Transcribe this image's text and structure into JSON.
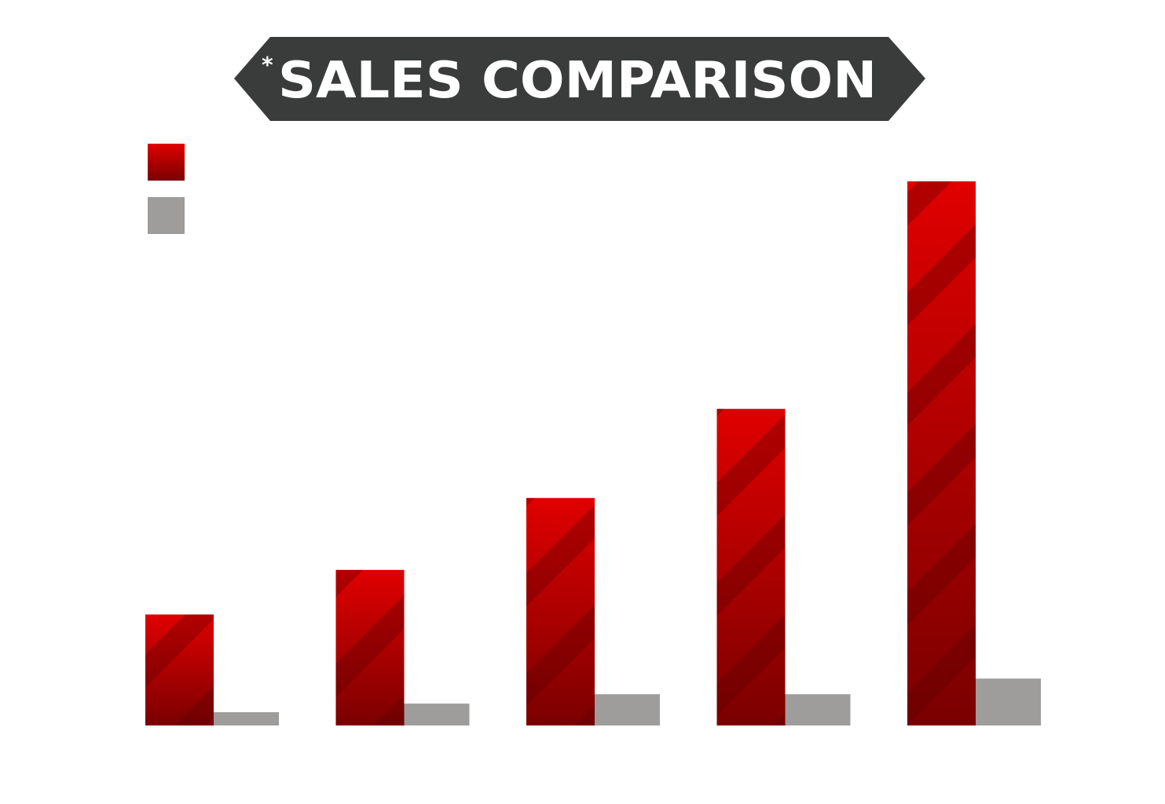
{
  "chart_data": {
    "type": "bar",
    "title_prefix": "*",
    "title": "SALES COMPARISON",
    "categories": [
      "",
      "",
      "",
      "",
      ""
    ],
    "series": [
      {
        "values": [
          142,
          199,
          291,
          405,
          696
        ]
      },
      {
        "values": [
          17,
          28,
          40,
          40,
          60
        ]
      }
    ],
    "ylim": [
      0,
      700
    ],
    "grid": false,
    "legend_placement": "top-left",
    "colors": {
      "series_1_top": "#e00000",
      "series_1_bottom": "#7a0000",
      "series_1_stripe": "#5a0000",
      "series_2": "#9e9d9c",
      "title_banner": "#3a3b3b",
      "title_text": "#ffffff"
    }
  }
}
